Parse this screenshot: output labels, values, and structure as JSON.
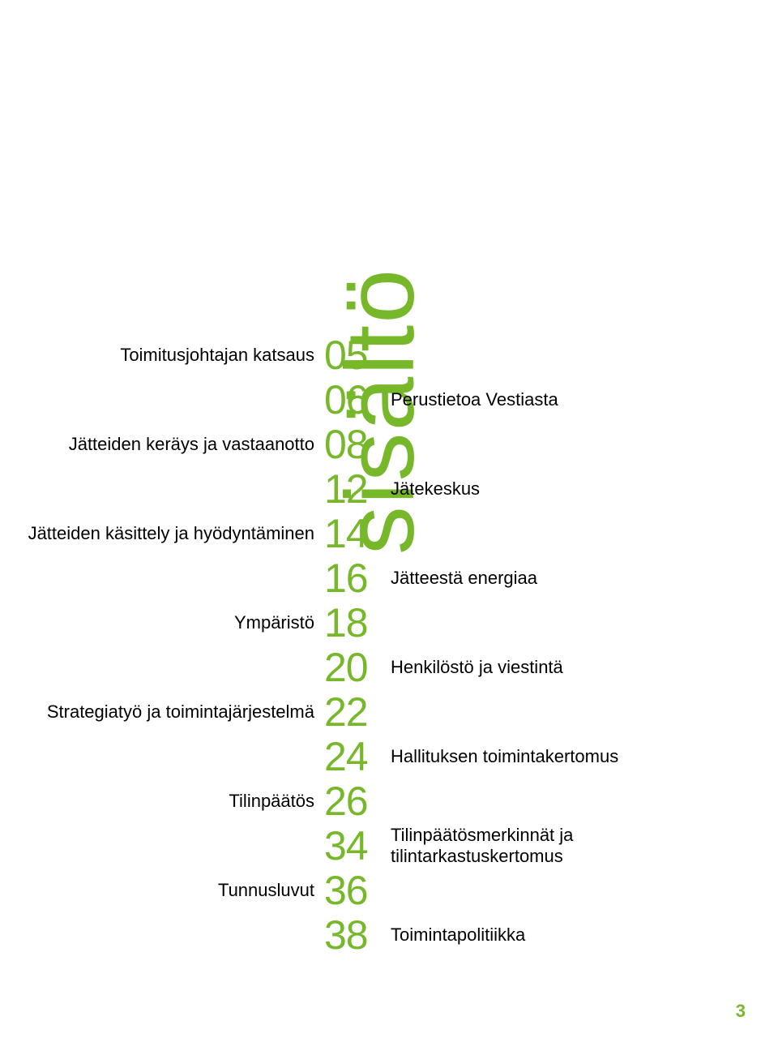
{
  "colors": {
    "accent": "#77b72a",
    "text": "#000000",
    "background": "#ffffff"
  },
  "typography": {
    "body_fontsize": 22,
    "number_fontsize": 50,
    "vertical_title_fontsize": 120
  },
  "vertical_title": "sisältö",
  "toc": [
    {
      "num": "05",
      "left": "Toimitusjohtajan katsaus",
      "right": ""
    },
    {
      "num": "06",
      "left": "",
      "right": "Perustietoa Vestiasta"
    },
    {
      "num": "08",
      "left": "Jätteiden keräys ja vastaanotto",
      "right": ""
    },
    {
      "num": "12",
      "left": "",
      "right": "Jätekeskus"
    },
    {
      "num": "14",
      "left": "Jätteiden käsittely ja hyödyntäminen",
      "right": ""
    },
    {
      "num": "16",
      "left": "",
      "right": "Jätteestä energiaa"
    },
    {
      "num": "18",
      "left": "Ympäristö",
      "right": ""
    },
    {
      "num": "20",
      "left": "",
      "right": "Henkilöstö ja viestintä"
    },
    {
      "num": "22",
      "left": "Strategiatyö ja toimintajärjestelmä",
      "right": ""
    },
    {
      "num": "24",
      "left": "",
      "right": "Hallituksen toimintakertomus"
    },
    {
      "num": "26",
      "left": "Tilinpäätös",
      "right": ""
    },
    {
      "num": "34",
      "left": "",
      "right": "Tilinpäätösmerkinnät ja tilintarkastuskertomus"
    },
    {
      "num": "36",
      "left": "Tunnusluvut",
      "right": ""
    },
    {
      "num": "38",
      "left": "",
      "right": "Toimintapolitiikka"
    }
  ],
  "page_number": "3"
}
